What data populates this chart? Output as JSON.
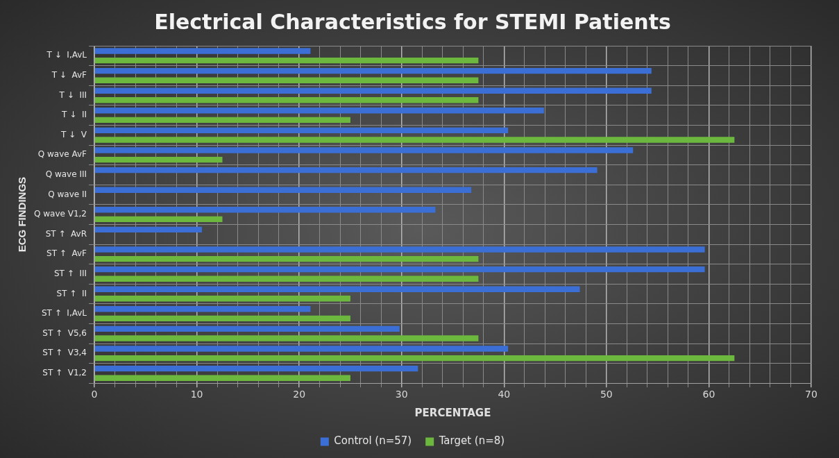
{
  "chart_data": {
    "type": "bar",
    "orientation": "horizontal",
    "title": "Electrical Characteristics for STEMI Patients",
    "xlabel": "PERCENTAGE",
    "ylabel": "ECG FINDINGS",
    "categories": [
      "T ↓  I,AvL",
      "T ↓  AvF",
      "T ↓  III",
      "T ↓  II",
      "T ↓  V",
      "Q wave AvF",
      "Q wave III",
      "Q wave II",
      "Q wave V1,2",
      "ST ↑  AvR",
      "ST ↑  AvF",
      "ST ↑  III",
      "ST ↑  II",
      "ST ↑  I,AvL",
      "ST ↑  V5,6",
      "ST ↑  V3,4",
      "ST ↑  V1,2"
    ],
    "series": [
      {
        "name": "Control (n=57)",
        "color": "#3b6fd6",
        "values": [
          21.1,
          54.4,
          54.4,
          43.9,
          40.4,
          52.6,
          49.1,
          36.8,
          33.3,
          10.5,
          59.6,
          59.6,
          47.4,
          21.1,
          29.8,
          40.4,
          31.6
        ]
      },
      {
        "name": "Target (n=8)",
        "color": "#6cb83e",
        "values": [
          37.5,
          37.5,
          37.5,
          25,
          62.5,
          12.5,
          0,
          0,
          12.5,
          0,
          37.5,
          37.5,
          25,
          25,
          37.5,
          62.5,
          25
        ]
      }
    ],
    "xlim": [
      0,
      70
    ],
    "xticks": [
      0,
      {
        "value": 2,
        "label": null
      },
      {
        "value": 4,
        "label": null
      },
      {
        "value": 6,
        "label": null
      },
      {
        "value": 8,
        "label": null
      },
      10,
      {
        "value": 12,
        "label": null
      },
      {
        "value": 14,
        "label": null
      },
      {
        "value": 16,
        "label": null
      },
      {
        "value": 18,
        "label": null
      },
      20,
      {
        "value": 22,
        "label": null
      },
      {
        "value": 24,
        "label": null
      },
      {
        "value": 26,
        "label": null
      },
      {
        "value": 28,
        "label": null
      },
      30,
      {
        "value": 32,
        "label": null
      },
      {
        "value": 34,
        "label": null
      },
      {
        "value": 36,
        "label": null
      },
      {
        "value": 38,
        "label": null
      },
      40,
      {
        "value": 42,
        "label": null
      },
      {
        "value": 44,
        "label": null
      },
      {
        "value": 46,
        "label": null
      },
      {
        "value": 48,
        "label": null
      },
      50,
      {
        "value": 52,
        "label": null
      },
      {
        "value": 54,
        "label": null
      },
      {
        "value": 56,
        "label": null
      },
      {
        "value": 58,
        "label": null
      },
      60,
      {
        "value": 62,
        "label": null
      },
      {
        "value": 64,
        "label": null
      },
      {
        "value": 66,
        "label": null
      },
      {
        "value": 68,
        "label": null
      },
      70
    ],
    "grid": true,
    "legend": "bottom"
  }
}
